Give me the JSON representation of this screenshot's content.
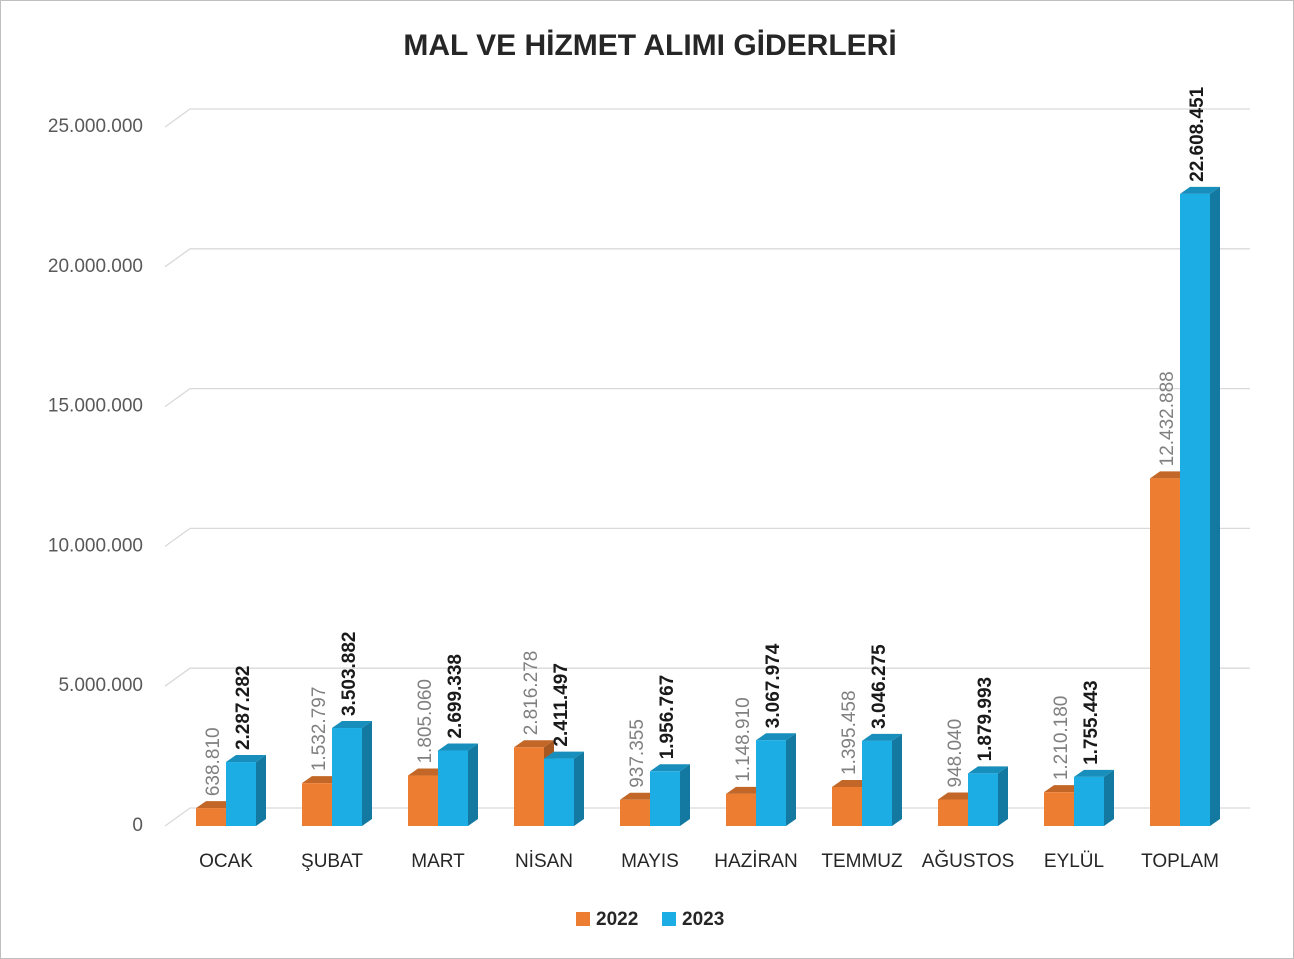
{
  "chart_data": {
    "type": "bar3d",
    "title": "MAL VE HİZMET ALIMI GİDERLERİ",
    "categories": [
      "OCAK",
      "ŞUBAT",
      "MART",
      "NİSAN",
      "MAYIS",
      "HAZİRAN",
      "TEMMUZ",
      "AĞUSTOS",
      "EYLÜL",
      "TOPLAM"
    ],
    "series": [
      {
        "name": "2022",
        "color": "#ED7D31",
        "values": [
          638810,
          1532797,
          1805060,
          2816278,
          937355,
          1148910,
          1395458,
          948040,
          1210180,
          12432888
        ],
        "value_labels": [
          "638.810",
          "1.532.797",
          "1.805.060",
          "2.816.278",
          "937.355",
          "1.148.910",
          "1.395.458",
          "948.040",
          "1.210.180",
          "12.432.888"
        ]
      },
      {
        "name": "2023",
        "color": "#1CADE4",
        "values": [
          2287282,
          3503882,
          2699338,
          2411497,
          1956767,
          3067974,
          3046275,
          1879993,
          1755443,
          22608451
        ],
        "value_labels": [
          "2.287.282",
          "3.503.882",
          "2.699.338",
          "2.411.497",
          "1.956.767",
          "3.067.974",
          "3.046.275",
          "1.879.993",
          "1.755.443",
          "22.608.451"
        ]
      }
    ],
    "ylim": [
      0,
      25000000
    ],
    "yticks": [
      0,
      {
        "value": 5000000,
        "label": "5.000.000"
      },
      {
        "value": 10000000,
        "label": "10.000.000"
      },
      {
        "value": 15000000,
        "label": "15.000.000"
      },
      {
        "value": 20000000,
        "label": "20.000.000"
      },
      {
        "value": 25000000,
        "label": "25.000.000"
      }
    ],
    "grid": true,
    "legend": "bottom"
  }
}
